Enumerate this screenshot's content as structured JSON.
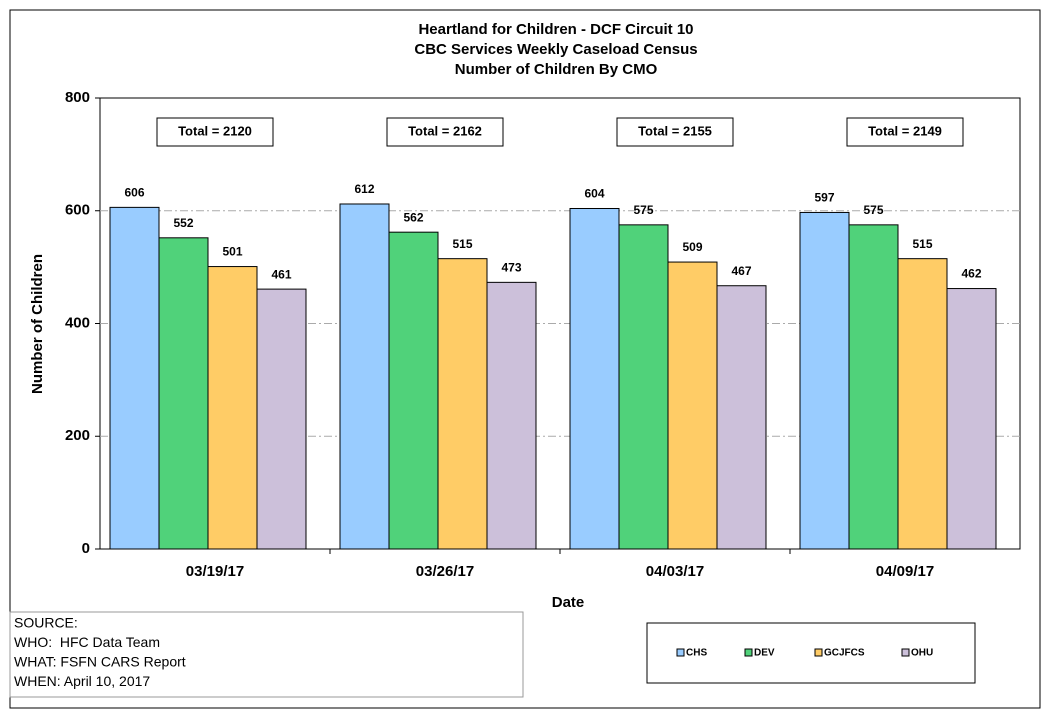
{
  "chart_data": {
    "type": "bar",
    "title": [
      "Heartland for Children - DCF Circuit 10",
      "CBC Services Weekly Caseload Census",
      "Number of Children By CMO"
    ],
    "x_label": "Date",
    "y_label": "Number of Children",
    "categories": [
      "03/19/17",
      "03/26/17",
      "04/03/17",
      "04/09/17"
    ],
    "series": [
      {
        "name": "CHS",
        "color": "#99ccff",
        "values": [
          606,
          612,
          604,
          597
        ]
      },
      {
        "name": "DEV",
        "color": "#50d27a",
        "values": [
          552,
          562,
          575,
          575
        ]
      },
      {
        "name": "GCJFCS",
        "color": "#ffcc66",
        "values": [
          501,
          515,
          509,
          515
        ]
      },
      {
        "name": "OHU",
        "color": "#ccc0da",
        "values": [
          461,
          473,
          467,
          462
        ]
      }
    ],
    "annotations": [
      "Total = 2120",
      "Total = 2162",
      "Total = 2155",
      "Total = 2149"
    ],
    "ylim": [
      0,
      800
    ],
    "yticks": [
      0,
      200,
      400,
      600,
      800
    ],
    "grid": true,
    "source": [
      "SOURCE:",
      "WHO:  HFC Data Team",
      "WHAT: FSFN CARS Report",
      "WHEN: April 10, 2017"
    ]
  }
}
